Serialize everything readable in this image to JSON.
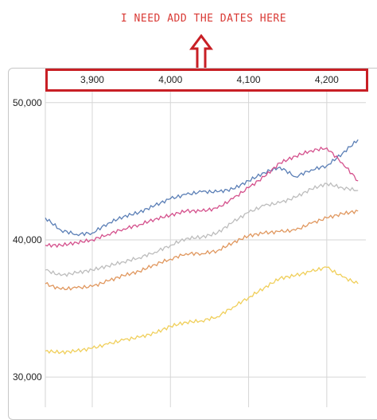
{
  "annotation": {
    "text": "I NEED ADD THE DATES HERE",
    "color": "#d93a35"
  },
  "highlight_color": "#c81f25",
  "chart_data": {
    "type": "line",
    "x_ticks": [
      "3,900",
      "4,000",
      "4,100",
      "4,200"
    ],
    "y_ticks": [
      "50,000",
      "40,000",
      "30,000"
    ],
    "xlim": [
      3840,
      4250
    ],
    "ylim": [
      27800,
      50800
    ],
    "grid": true,
    "series": [
      {
        "color": "#5b7fb6",
        "x": [
          3840,
          3860,
          3880,
          3900,
          3920,
          3940,
          3960,
          3980,
          4000,
          4020,
          4040,
          4060,
          4080,
          4100,
          4120,
          4140,
          4160,
          4180,
          4200,
          4220,
          4240
        ],
        "y": [
          41600,
          40700,
          40400,
          40500,
          41200,
          41700,
          42000,
          42500,
          43000,
          43300,
          43500,
          43500,
          43700,
          44300,
          44900,
          45300,
          44600,
          45100,
          45400,
          46300,
          47300
        ]
      },
      {
        "color": "#d4508c",
        "x": [
          3840,
          3860,
          3880,
          3900,
          3920,
          3940,
          3960,
          3980,
          4000,
          4020,
          4040,
          4060,
          4080,
          4100,
          4120,
          4140,
          4160,
          4180,
          4200,
          4220,
          4240
        ],
        "y": [
          39600,
          39600,
          39800,
          40000,
          40400,
          40800,
          41100,
          41500,
          41800,
          42100,
          42100,
          42300,
          43000,
          43800,
          44600,
          45600,
          46100,
          46500,
          46700,
          45600,
          44300
        ]
      },
      {
        "color": "#bdbdbd",
        "x": [
          3840,
          3860,
          3880,
          3900,
          3920,
          3940,
          3960,
          3980,
          4000,
          4020,
          4040,
          4060,
          4080,
          4100,
          4120,
          4140,
          4160,
          4180,
          4200,
          4220,
          4240
        ],
        "y": [
          37800,
          37400,
          37600,
          37800,
          38100,
          38400,
          38700,
          39100,
          39600,
          40100,
          40200,
          40500,
          41300,
          42000,
          42500,
          42700,
          43100,
          43700,
          44100,
          43800,
          43600
        ]
      },
      {
        "color": "#e0975e",
        "x": [
          3840,
          3860,
          3880,
          3900,
          3920,
          3940,
          3960,
          3980,
          4000,
          4020,
          4040,
          4060,
          4080,
          4100,
          4120,
          4140,
          4160,
          4180,
          4200,
          4220,
          4240
        ],
        "y": [
          36800,
          36400,
          36500,
          36600,
          37000,
          37400,
          37700,
          38200,
          38600,
          39000,
          39000,
          39200,
          39800,
          40300,
          40500,
          40600,
          40700,
          41200,
          41600,
          41900,
          42100
        ]
      },
      {
        "color": "#f0cf5a",
        "x": [
          3840,
          3860,
          3880,
          3900,
          3920,
          3940,
          3960,
          3980,
          4000,
          4020,
          4040,
          4060,
          4080,
          4100,
          4120,
          4140,
          4160,
          4180,
          4200,
          4220,
          4240
        ],
        "y": [
          31900,
          31800,
          31900,
          32100,
          32400,
          32700,
          32900,
          33200,
          33700,
          34000,
          34100,
          34400,
          35100,
          35800,
          36500,
          37200,
          37400,
          37700,
          38000,
          37300,
          36800
        ]
      }
    ]
  }
}
